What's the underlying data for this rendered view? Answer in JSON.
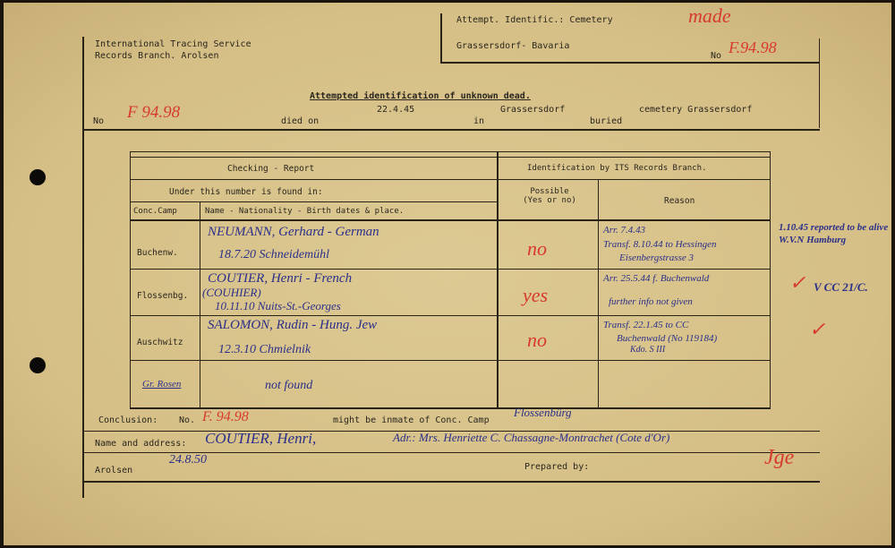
{
  "header": {
    "org_line1": "International Tracing Service",
    "org_line2": "Records Branch. Arolsen",
    "attempt_label": "Attempt. Identific.: Cemetery",
    "attempt_place": "Grassersdorf- Bavaria",
    "no_label": "No",
    "no_value": "F.94.98",
    "stamp_note": "made"
  },
  "title": "Attempted identification of unknown dead.",
  "record": {
    "no_label": "No",
    "no_value": "F 94.98",
    "died_on_label": "died on",
    "died_on": "22.4.45",
    "in_label": "in",
    "in_place": "Grassersdorf",
    "buried_label": "buried",
    "buried": "cemetery Grassersdorf"
  },
  "table": {
    "checking_header": "Checking - Report",
    "found_in_header": "Under this number is found in:",
    "camp_header": "Conc.Camp",
    "name_header": "Name - Nationality - Birth dates & place.",
    "its_header": "Identification by ITS Records Branch.",
    "possible_header": "Possible (Yes or no)",
    "reason_header": "Reason",
    "rows": [
      {
        "camp": "Buchenw.",
        "name_line1": "NEUMANN, Gerhard - German",
        "name_line2": "18.7.20      Schneidemühl",
        "possible": "no",
        "reason_line1": "Arr. 7.4.43",
        "reason_line2": "Transf. 8.10.44 to Hessingen",
        "reason_line3": "Eisenbergstrasse 3",
        "note": "1.10.45 reported to be alive W.V.N Hamburg"
      },
      {
        "camp": "Flossenbg.",
        "name_line1": "COUTIER, Henri  -  French",
        "name_line2": "(COUHIER)",
        "name_line3": "10.11.10      Nuits-St.-Georges",
        "possible": "yes",
        "reason_line1": "Arr. 25.5.44 f. Buchenwald",
        "reason_line2": "further info not given",
        "reason_line3": "",
        "note": "V CC 21/C."
      },
      {
        "camp": "Auschwitz",
        "name_line1": "SALOMON, Rudin - Hung. Jew",
        "name_line2": "12.3.10      Chmielnik",
        "possible": "no",
        "reason_line1": "Transf. 22.1.45 to CC",
        "reason_line2": "Buchenwald (No 119184)",
        "reason_line3": "Kdo. S III",
        "note": ""
      },
      {
        "camp": "Gr. Rosen",
        "name_line1": "not found",
        "name_line2": "",
        "possible": "",
        "reason_line1": "",
        "reason_line2": "",
        "reason_line3": "",
        "note": ""
      }
    ]
  },
  "conclusion": {
    "label": "Conclusion:",
    "no_label": "No.",
    "no_value": "F. 94.98",
    "might_be": "might be inmate of Conc. Camp",
    "camp": "Flossenbürg"
  },
  "name_address": {
    "label": "Name and address:",
    "name": "COUTIER, Henri,",
    "address": "Adr.: Mrs. Henriette C. Chassagne-Montrachet (Cote d'Or)"
  },
  "footer": {
    "place_label": "Arolsen",
    "date": "24.8.50",
    "prepared_by_label": "Prepared by:",
    "signature": "Jge"
  }
}
